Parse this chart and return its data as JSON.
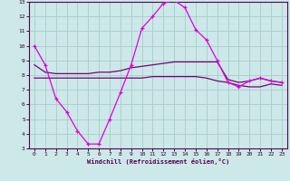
{
  "xlabel": "Windchill (Refroidissement éolien,°C)",
  "ylabel": "",
  "xlim": [
    -0.5,
    23.5
  ],
  "ylim": [
    3,
    13
  ],
  "yticks": [
    3,
    4,
    5,
    6,
    7,
    8,
    9,
    10,
    11,
    12,
    13
  ],
  "xticks": [
    0,
    1,
    2,
    3,
    4,
    5,
    6,
    7,
    8,
    9,
    10,
    11,
    12,
    13,
    14,
    15,
    16,
    17,
    18,
    19,
    20,
    21,
    22,
    23
  ],
  "bg_color": "#cce8e8",
  "grid_color": "#aacccc",
  "line_color_main": "#dd00dd",
  "line_color_band": "#770077",
  "main_line": {
    "x": [
      0,
      1,
      2,
      3,
      4,
      5,
      6,
      7,
      8,
      9,
      10,
      11,
      12,
      13,
      14,
      15,
      16,
      17,
      18,
      19,
      20,
      21,
      22,
      23
    ],
    "y": [
      10.0,
      8.7,
      6.4,
      5.5,
      4.2,
      3.3,
      3.3,
      5.0,
      6.8,
      8.7,
      11.2,
      12.0,
      12.9,
      13.1,
      12.6,
      11.1,
      10.4,
      9.0,
      7.5,
      7.2,
      7.6,
      7.8,
      7.6,
      7.5
    ]
  },
  "upper_line": {
    "x": [
      0,
      1,
      2,
      3,
      4,
      5,
      6,
      7,
      8,
      9,
      10,
      11,
      12,
      13,
      14,
      15,
      16,
      17,
      18,
      19,
      20,
      21,
      22,
      23
    ],
    "y": [
      8.7,
      8.2,
      8.1,
      8.1,
      8.1,
      8.1,
      8.2,
      8.2,
      8.3,
      8.5,
      8.6,
      8.7,
      8.8,
      8.9,
      8.9,
      8.9,
      8.9,
      8.9,
      7.7,
      7.5,
      7.6,
      7.8,
      7.6,
      7.5
    ]
  },
  "lower_line": {
    "x": [
      0,
      1,
      2,
      3,
      4,
      5,
      6,
      7,
      8,
      9,
      10,
      11,
      12,
      13,
      14,
      15,
      16,
      17,
      18,
      19,
      20,
      21,
      22,
      23
    ],
    "y": [
      7.8,
      7.8,
      7.8,
      7.8,
      7.8,
      7.8,
      7.8,
      7.8,
      7.8,
      7.8,
      7.8,
      7.9,
      7.9,
      7.9,
      7.9,
      7.9,
      7.8,
      7.6,
      7.5,
      7.3,
      7.2,
      7.2,
      7.4,
      7.3
    ]
  }
}
